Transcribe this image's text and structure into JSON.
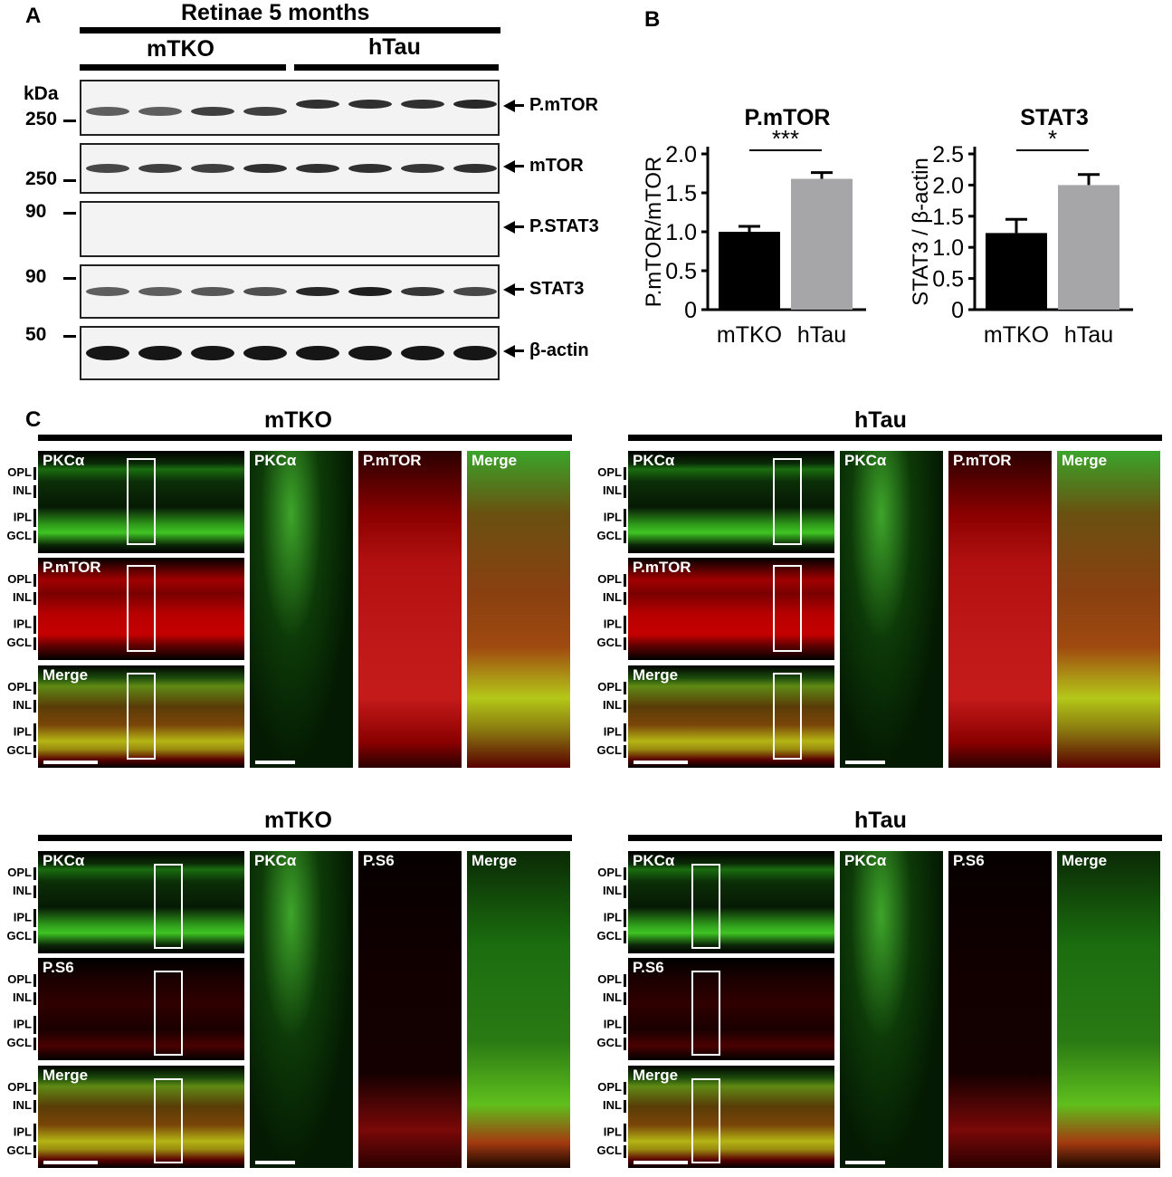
{
  "panel_a": {
    "label": "A",
    "title": "Retinae 5 months",
    "groups": [
      "mTKO",
      "hTau"
    ],
    "kda_label": "kDa",
    "blots": [
      {
        "target": "P.mTOR",
        "marker": "250",
        "bands": [
          0.55,
          0.55,
          0.75,
          0.75,
          0.85,
          0.85,
          0.85,
          0.9
        ]
      },
      {
        "target": "mTOR",
        "marker": "250",
        "bands": [
          0.7,
          0.75,
          0.75,
          0.85,
          0.85,
          0.85,
          0.8,
          0.85
        ]
      },
      {
        "target": "P.STAT3",
        "marker": "90",
        "bands": [
          0,
          0,
          0,
          0,
          0,
          0,
          0,
          0
        ]
      },
      {
        "target": "STAT3",
        "marker": "90",
        "bands": [
          0.55,
          0.55,
          0.6,
          0.65,
          0.9,
          0.95,
          0.8,
          0.7
        ]
      },
      {
        "target": "β-actin",
        "marker": "50",
        "bands": [
          1,
          1,
          1,
          1,
          1,
          1,
          1,
          1
        ]
      }
    ]
  },
  "panel_b": {
    "label": "B",
    "colors": {
      "mTKO": "#000000",
      "hTau": "#a6a6a8"
    }
  },
  "chart_data": [
    {
      "type": "bar",
      "title": "P.mTOR",
      "ylabel": "P.mTOR/mTOR",
      "categories": [
        "mTKO",
        "hTau"
      ],
      "values": [
        1.0,
        1.68
      ],
      "errors": [
        0.07,
        0.08
      ],
      "ylim": [
        0,
        2.0
      ],
      "yticks": [
        "0",
        "0.5",
        "1.0",
        "1.5",
        "2.0"
      ],
      "significance": "***"
    },
    {
      "type": "bar",
      "title": "STAT3",
      "ylabel": "STAT3 / β-actin",
      "categories": [
        "mTKO",
        "hTau"
      ],
      "values": [
        1.23,
        2.0
      ],
      "errors": [
        0.22,
        0.17
      ],
      "ylim": [
        0,
        2.5
      ],
      "yticks": [
        "0",
        "0.5",
        "1.0",
        "1.5",
        "2.0",
        "2.5"
      ],
      "significance": "*"
    }
  ],
  "panel_c": {
    "label": "C",
    "layers": [
      "OPL",
      "INL",
      "IPL",
      "GCL"
    ],
    "blocks": [
      {
        "group": "mTKO",
        "marker": "P.mTOR",
        "labels": [
          "PKCα",
          "P.mTOR",
          "Merge"
        ]
      },
      {
        "group": "hTau",
        "marker": "P.mTOR",
        "labels": [
          "PKCα",
          "P.mTOR",
          "Merge"
        ]
      },
      {
        "group": "mTKO",
        "marker": "P.S6",
        "labels": [
          "PKCα",
          "P.S6",
          "Merge"
        ]
      },
      {
        "group": "hTau",
        "marker": "P.S6",
        "labels": [
          "PKCα",
          "P.S6",
          "Merge"
        ]
      }
    ]
  }
}
